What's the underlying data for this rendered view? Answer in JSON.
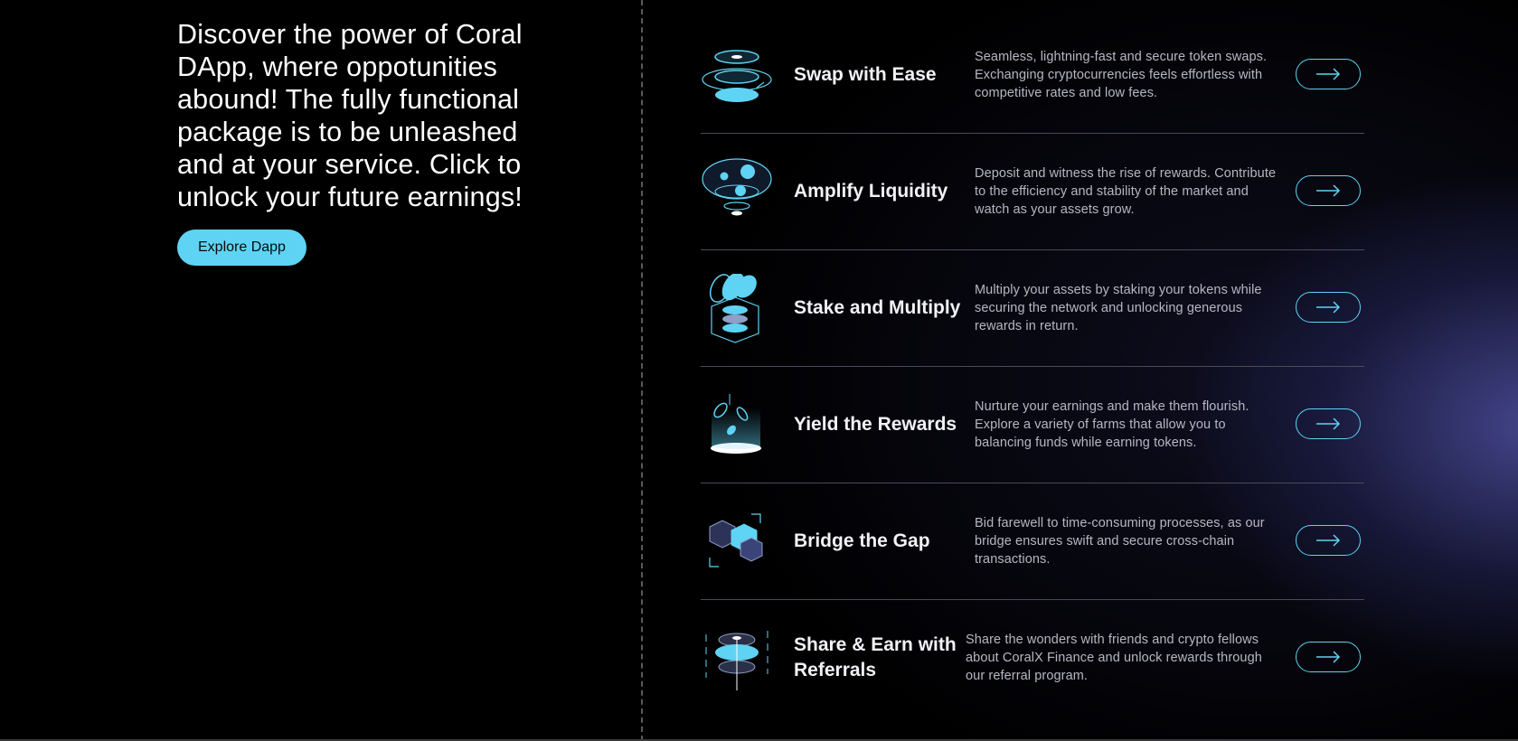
{
  "hero": {
    "text": "Discover the power of Coral DApp, where oppotunities abound! The fully functional package is to be unleashed and at your service. Click to unlock your future earnings!",
    "button_label": "Explore Dapp"
  },
  "colors": {
    "accent": "#5fd3f3",
    "background": "#000000"
  },
  "features": [
    {
      "icon": "swap-coins-icon",
      "title": "Swap with Ease",
      "description": "Seamless, lightning-fast and secure token swaps. Exchanging cryptocurrencies feels effortless with competitive rates and low fees."
    },
    {
      "icon": "liquidity-funnel-icon",
      "title": "Amplify Liquidity",
      "description": "Deposit and witness the rise of rewards. Contribute to the efficiency and stability of the market and watch as your assets grow."
    },
    {
      "icon": "stake-stack-icon",
      "title": "Stake and Multiply",
      "description": "Multiply your assets by staking your tokens while securing the network and unlocking generous rewards in return."
    },
    {
      "icon": "yield-coins-icon",
      "title": "Yield the Rewards",
      "description": "Nurture your earnings and make them flourish. Explore a variety of farms that allow you to balancing funds while earning tokens."
    },
    {
      "icon": "bridge-cubes-icon",
      "title": "Bridge the Gap",
      "description": "Bid farewell to time-consuming processes, as our bridge ensures swift and secure cross-chain transactions."
    },
    {
      "icon": "referral-coins-icon",
      "title": "Share & Earn with Referrals",
      "description": "Share the wonders with friends and crypto fellows about CoralX Finance and unlock rewards through our referral program."
    }
  ]
}
